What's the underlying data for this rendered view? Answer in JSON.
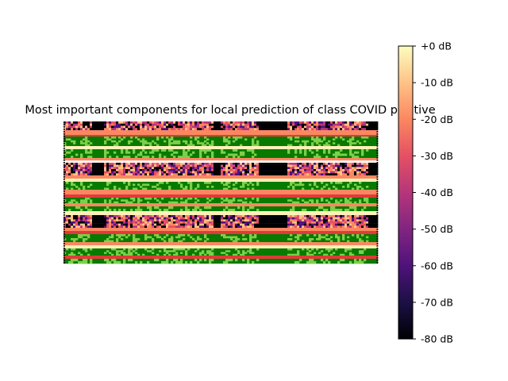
{
  "chart_data": {
    "type": "heatmap",
    "title": "Most important components for local prediction of class COVID positive",
    "xlabel": "",
    "ylabel": "",
    "axes_visible": false,
    "colormap": "magma",
    "overlay_color": "#7fcf4a",
    "colorbar": {
      "range": [
        -80,
        0
      ],
      "unit": "dB",
      "tick_values": [
        0,
        -10,
        -20,
        -30,
        -40,
        -50,
        -60,
        -70,
        -80
      ],
      "tick_labels": [
        "+0 dB",
        "-10 dB",
        "-20 dB",
        "-30 dB",
        "-40 dB",
        "-50 dB",
        "-60 dB",
        "-70 dB",
        "-80 dB"
      ]
    }
  }
}
